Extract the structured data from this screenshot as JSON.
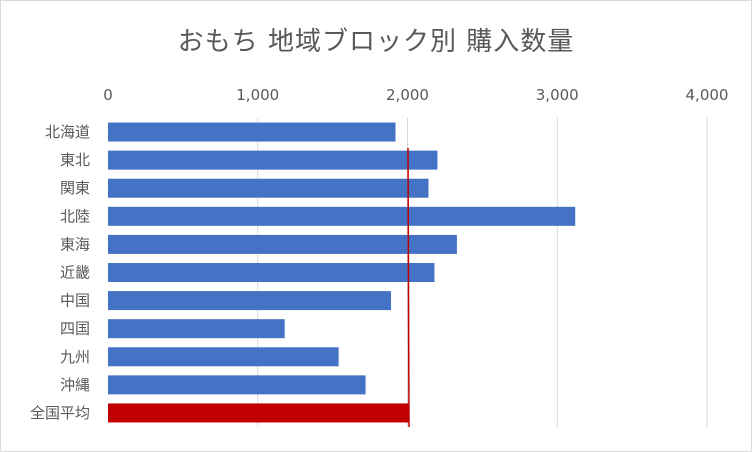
{
  "chart_data": {
    "type": "bar",
    "orientation": "horizontal",
    "title": "おもち 地域ブロック別 購入数量",
    "categories": [
      "北海道",
      "東北",
      "関東",
      "北陸",
      "東海",
      "近畿",
      "中国",
      "四国",
      "九州",
      "沖縄",
      "全国平均"
    ],
    "values": [
      1920,
      2200,
      2140,
      3120,
      2330,
      2180,
      1890,
      1180,
      1540,
      1720,
      2010
    ],
    "x_ticks": [
      0,
      1000,
      2000,
      3000,
      4000
    ],
    "x_tick_labels": [
      "0",
      "1,000",
      "2,000",
      "3,000",
      "4,000"
    ],
    "xlim": [
      0,
      4000
    ],
    "axis_position": "top",
    "gridlines": true,
    "reference_line": {
      "label": "全国平均",
      "value": 2010,
      "color": "#c00000"
    },
    "colors": {
      "bar": "#4472c4",
      "highlight": "#c00000",
      "grid": "#d9d9d9",
      "text": "#595959"
    }
  }
}
